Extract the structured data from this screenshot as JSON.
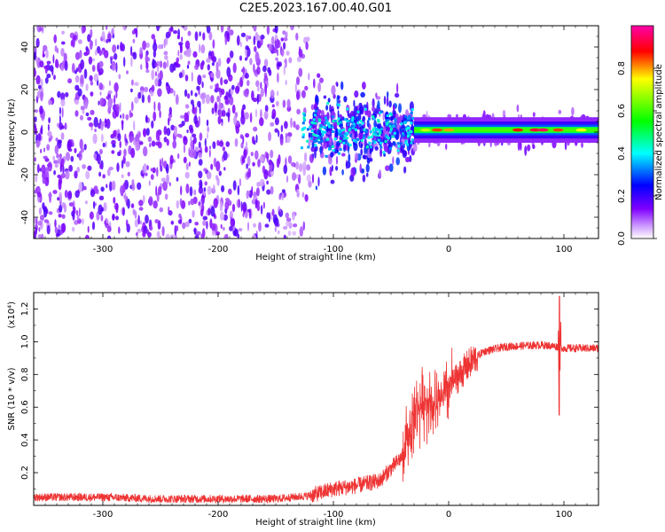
{
  "figure_title": "C2E5.2023.167.00.40.G01",
  "chart_data": [
    {
      "type": "heatmap",
      "title": "C2E5.2023.167.00.40.G01",
      "xlabel": "Height of straight line (km)",
      "ylabel": "Frequency (Hz)",
      "xlim": [
        -360,
        130
      ],
      "ylim": [
        -50,
        50
      ],
      "x_ticks": [
        -300,
        -200,
        -100,
        0,
        100
      ],
      "y_ticks": [
        -40,
        -20,
        0,
        20,
        40
      ],
      "colorbar": {
        "label": "Normalized spectral amplitude",
        "range": [
          0,
          1
        ],
        "ticks": [
          "0.0",
          "0.2",
          "0.4",
          "0.6",
          "0.8"
        ],
        "colormap_stops": [
          "#ffffff",
          "#cc99ff",
          "#7f00ff",
          "#0000ff",
          "#00ffff",
          "#00ff00",
          "#ffff00",
          "#ff0000",
          "#ff00aa"
        ]
      },
      "description_regions": [
        {
          "x_range": [
            -360,
            -140
          ],
          "freq_spread": 50,
          "amplitude": 0.15
        },
        {
          "x_range": [
            -140,
            -30
          ],
          "freq_spread": 15,
          "amplitude": 0.35
        },
        {
          "x_range": [
            -30,
            130
          ],
          "freq_center": 1,
          "freq_spread": 3,
          "amplitude": 0.75
        }
      ]
    },
    {
      "type": "line",
      "xlabel": "Height of straight line (km)",
      "ylabel": "SNR (10 * v/v)",
      "y_multiplier_label": "(x10⁴)",
      "xlim": [
        -360,
        130
      ],
      "ylim": [
        0,
        1.3
      ],
      "x_ticks": [
        -300,
        -200,
        -100,
        0,
        100
      ],
      "y_ticks": [
        "0.2",
        "0.4",
        "0.6",
        "0.8",
        "1.0",
        "1.2"
      ],
      "color": "#ee3333",
      "envelope": [
        {
          "x": -360,
          "y": 0.05
        },
        {
          "x": -300,
          "y": 0.05
        },
        {
          "x": -250,
          "y": 0.04
        },
        {
          "x": -200,
          "y": 0.04
        },
        {
          "x": -150,
          "y": 0.04
        },
        {
          "x": -120,
          "y": 0.06
        },
        {
          "x": -100,
          "y": 0.1
        },
        {
          "x": -80,
          "y": 0.12
        },
        {
          "x": -60,
          "y": 0.15
        },
        {
          "x": -40,
          "y": 0.3
        },
        {
          "x": -30,
          "y": 0.55
        },
        {
          "x": -20,
          "y": 0.65
        },
        {
          "x": -10,
          "y": 0.6
        },
        {
          "x": 0,
          "y": 0.72
        },
        {
          "x": 10,
          "y": 0.8
        },
        {
          "x": 20,
          "y": 0.88
        },
        {
          "x": 30,
          "y": 0.94
        },
        {
          "x": 50,
          "y": 0.97
        },
        {
          "x": 80,
          "y": 0.98
        },
        {
          "x": 95,
          "y": 0.97
        },
        {
          "x": 100,
          "y": 0.96
        },
        {
          "x": 130,
          "y": 0.96
        }
      ],
      "spikes": [
        {
          "x": 96,
          "y_max": 1.28,
          "y_min": 0.55
        }
      ]
    }
  ]
}
